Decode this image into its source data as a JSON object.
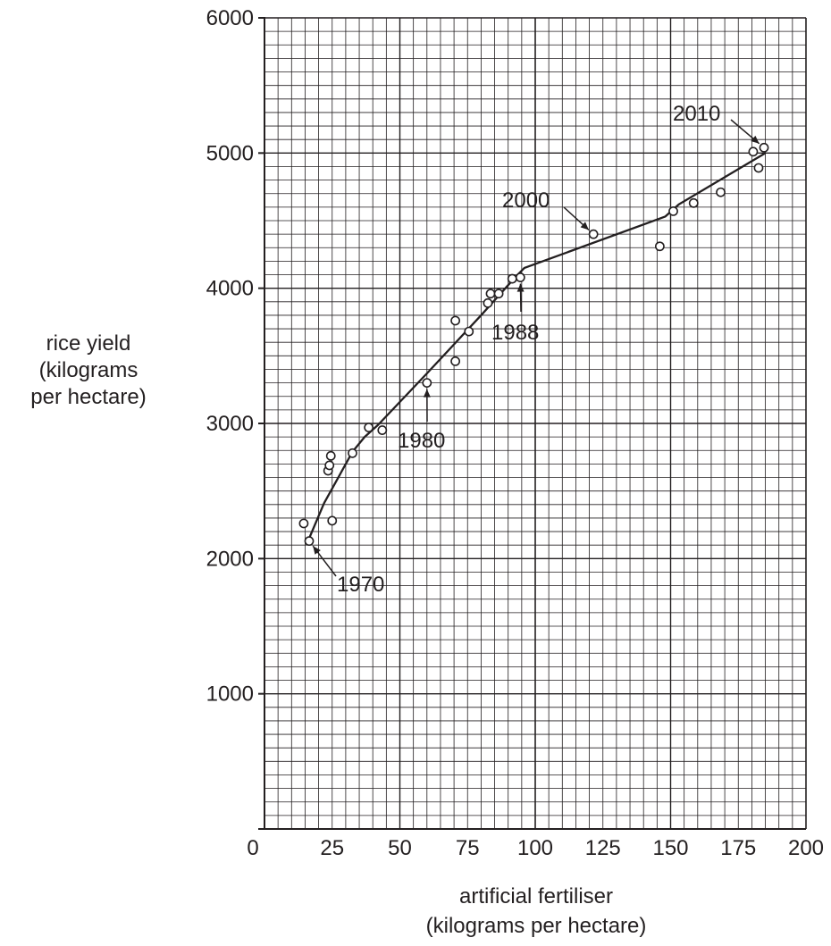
{
  "chart_data": {
    "type": "scatter",
    "title": "",
    "xlabel": [
      "artificial fertiliser",
      "(kilograms per hectare)"
    ],
    "ylabel": [
      "rice yield",
      "(kilograms",
      "per hectare)"
    ],
    "xlim": [
      0,
      200
    ],
    "ylim": [
      0,
      6000
    ],
    "x_ticks": [
      0,
      25,
      50,
      75,
      100,
      125,
      150,
      175,
      200
    ],
    "y_ticks": [
      0,
      1000,
      2000,
      3000,
      4000,
      5000,
      6000
    ],
    "x_tick_labels": [
      "0",
      "25",
      "50",
      "75",
      "100",
      "125",
      "150",
      "175",
      "200"
    ],
    "y_tick_labels": [
      "1000",
      "2000",
      "3000",
      "4000",
      "5000",
      "6000"
    ],
    "grid": true,
    "series": [
      {
        "points": [
          {
            "x": 14.5,
            "y": 2260
          },
          {
            "x": 16.5,
            "y": 2130
          },
          {
            "x": 23.5,
            "y": 2650
          },
          {
            "x": 24,
            "y": 2690
          },
          {
            "x": 24.5,
            "y": 2760
          },
          {
            "x": 25,
            "y": 2280
          },
          {
            "x": 32.5,
            "y": 2780
          },
          {
            "x": 38.5,
            "y": 2970
          },
          {
            "x": 43.5,
            "y": 2950
          },
          {
            "x": 60,
            "y": 3300
          },
          {
            "x": 70.5,
            "y": 3760
          },
          {
            "x": 70.5,
            "y": 3460
          },
          {
            "x": 75.5,
            "y": 3680
          },
          {
            "x": 82.5,
            "y": 3890
          },
          {
            "x": 83.5,
            "y": 3960
          },
          {
            "x": 86.5,
            "y": 3960
          },
          {
            "x": 91.5,
            "y": 4070
          },
          {
            "x": 94.5,
            "y": 4080
          },
          {
            "x": 121.5,
            "y": 4400
          },
          {
            "x": 146,
            "y": 4310
          },
          {
            "x": 151,
            "y": 4570
          },
          {
            "x": 158.5,
            "y": 4630
          },
          {
            "x": 168.5,
            "y": 4710
          },
          {
            "x": 180.5,
            "y": 5010
          },
          {
            "x": 182.5,
            "y": 4890
          },
          {
            "x": 184.5,
            "y": 5040
          }
        ]
      }
    ],
    "trend_line": [
      {
        "x": 16.5,
        "y": 2150
      },
      {
        "x": 22,
        "y": 2410
      },
      {
        "x": 32.5,
        "y": 2790
      },
      {
        "x": 37,
        "y": 2900
      },
      {
        "x": 42,
        "y": 2990
      },
      {
        "x": 60,
        "y": 3370
      },
      {
        "x": 80,
        "y": 3800
      },
      {
        "x": 93,
        "y": 4090
      },
      {
        "x": 96,
        "y": 4150
      },
      {
        "x": 148,
        "y": 4530
      },
      {
        "x": 153,
        "y": 4620
      },
      {
        "x": 185,
        "y": 5000
      }
    ],
    "annotations": [
      {
        "text": "1970",
        "point": {
          "x": 16.5,
          "y": 2130
        }
      },
      {
        "text": "1980",
        "point": {
          "x": 60,
          "y": 3300
        }
      },
      {
        "text": "1988",
        "point": {
          "x": 94.5,
          "y": 4080
        }
      },
      {
        "text": "2000",
        "point": {
          "x": 121.5,
          "y": 4400
        }
      },
      {
        "text": "2010",
        "point": {
          "x": 184.5,
          "y": 5040
        }
      }
    ]
  }
}
